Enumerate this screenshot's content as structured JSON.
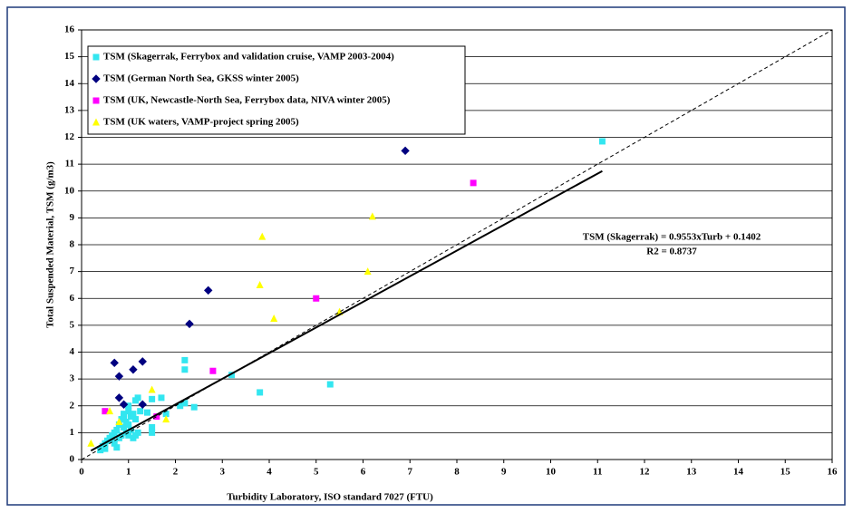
{
  "chart_data": {
    "type": "scatter",
    "x_label": "Turbidity Laboratory, ISO standard 7027 (FTU)",
    "y_label": "Total Suspended Material,  TSM (g/m3)",
    "xlim": [
      0,
      16
    ],
    "ylim": [
      0,
      16
    ],
    "xticks": [
      0,
      1,
      2,
      3,
      4,
      5,
      6,
      7,
      8,
      9,
      10,
      11,
      12,
      13,
      14,
      15,
      16
    ],
    "yticks": [
      0,
      1,
      2,
      3,
      4,
      5,
      6,
      7,
      8,
      9,
      10,
      11,
      12,
      13,
      14,
      15,
      16
    ],
    "grid": "y",
    "legend": "top-left",
    "series": [
      {
        "name": "TSM (Skagerrak, Ferrybox and validation cruise, VAMP 2003-2004)",
        "color": "#33e6f0",
        "marker": "square",
        "x": [
          0.4,
          0.45,
          0.5,
          0.5,
          0.55,
          0.6,
          0.65,
          0.7,
          0.7,
          0.75,
          0.75,
          0.8,
          0.8,
          0.85,
          0.85,
          0.9,
          0.9,
          0.95,
          0.95,
          1.0,
          1.0,
          1.0,
          1.05,
          1.05,
          1.1,
          1.1,
          1.15,
          1.15,
          1.2,
          1.2,
          1.25,
          1.4,
          1.5,
          1.5,
          1.5,
          1.7,
          1.8,
          2.1,
          2.2,
          2.2,
          2.4,
          3.2,
          3.8,
          5.3,
          11.1,
          0.65,
          0.9,
          1.0,
          1.15,
          2.2
        ],
        "values": [
          0.35,
          0.5,
          0.6,
          0.4,
          0.7,
          0.8,
          0.9,
          1.0,
          0.6,
          0.45,
          1.1,
          0.8,
          1.3,
          0.9,
          1.5,
          1.2,
          1.6,
          1.0,
          1.4,
          0.9,
          1.3,
          1.8,
          1.6,
          1.1,
          1.7,
          0.8,
          2.2,
          0.9,
          2.3,
          1.0,
          1.8,
          1.75,
          1.0,
          1.2,
          2.25,
          2.3,
          1.7,
          2.0,
          3.7,
          3.35,
          1.95,
          3.15,
          2.5,
          2.8,
          11.85,
          0.75,
          1.7,
          2.0,
          1.5,
          2.1
        ]
      },
      {
        "name": "TSM (German North Sea, GKSS winter 2005)",
        "color": "#000080",
        "marker": "diamond",
        "x": [
          0.7,
          0.8,
          0.8,
          1.1,
          1.3,
          0.9,
          1.3,
          2.3,
          2.7,
          6.9
        ],
        "values": [
          3.6,
          3.1,
          2.3,
          3.35,
          3.65,
          2.05,
          2.05,
          5.05,
          6.3,
          11.5
        ]
      },
      {
        "name": "TSM (UK, Newcastle-North Sea, Ferrybox data, NIVA winter 2005)",
        "color": "#ff00ff",
        "marker": "square",
        "x": [
          0.5,
          1.6,
          2.8,
          5.0,
          8.35
        ],
        "values": [
          1.8,
          1.6,
          3.3,
          6.0,
          10.3
        ]
      },
      {
        "name": "TSM (UK waters, VAMP-project spring 2005)",
        "color": "#ffff00",
        "marker": "triangle",
        "x": [
          0.2,
          0.6,
          0.8,
          1.5,
          1.8,
          3.8,
          3.85,
          4.1,
          6.1,
          6.2,
          5.5
        ],
        "values": [
          0.6,
          1.8,
          1.4,
          2.6,
          1.5,
          6.5,
          8.3,
          5.25,
          7.0,
          9.05,
          5.5
        ]
      }
    ],
    "lines": [
      {
        "style": "solid",
        "x": [
          0.2,
          11.1
        ],
        "values": [
          0.331,
          10.744
        ]
      },
      {
        "style": "dashed",
        "x": [
          0,
          16
        ],
        "values": [
          0,
          16
        ]
      }
    ],
    "annotations": [
      "TSM (Skagerrak) = 0.9553xTurb + 0.1402",
      "R2 = 0.8737"
    ]
  }
}
